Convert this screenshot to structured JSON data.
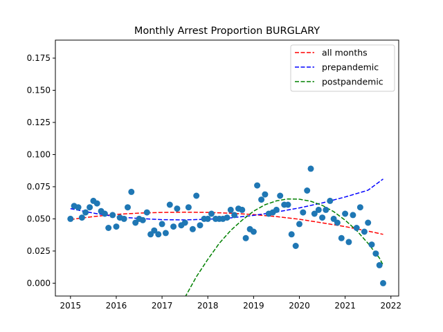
{
  "chart_data": {
    "type": "scatter",
    "title": "Monthly Arrest Proportion BURGLARY",
    "xlabel": "",
    "ylabel": "",
    "xlim": [
      2014.67,
      2022.17
    ],
    "ylim": [
      -0.01,
      0.189
    ],
    "x_ticks": [
      2015,
      2016,
      2017,
      2018,
      2019,
      2020,
      2021,
      2022
    ],
    "y_ticks": [
      0.0,
      0.025,
      0.05,
      0.075,
      0.1,
      0.125,
      0.15,
      0.175
    ],
    "y_tick_labels": [
      "0.000",
      "0.025",
      "0.050",
      "0.075",
      "0.100",
      "0.125",
      "0.150",
      "0.175"
    ],
    "grid": false,
    "legend_position": "top-right",
    "point_color": "#1f77b4",
    "points": [
      [
        2015.0,
        0.05
      ],
      [
        2015.08,
        0.06
      ],
      [
        2015.17,
        0.059
      ],
      [
        2015.25,
        0.051
      ],
      [
        2015.33,
        0.055
      ],
      [
        2015.42,
        0.059
      ],
      [
        2015.5,
        0.064
      ],
      [
        2015.58,
        0.062
      ],
      [
        2015.67,
        0.056
      ],
      [
        2015.75,
        0.054
      ],
      [
        2015.83,
        0.043
      ],
      [
        2015.92,
        0.053
      ],
      [
        2016.0,
        0.044
      ],
      [
        2016.08,
        0.051
      ],
      [
        2016.17,
        0.05
      ],
      [
        2016.25,
        0.059
      ],
      [
        2016.33,
        0.071
      ],
      [
        2016.42,
        0.047
      ],
      [
        2016.5,
        0.05
      ],
      [
        2016.58,
        0.049
      ],
      [
        2016.67,
        0.055
      ],
      [
        2016.75,
        0.038
      ],
      [
        2016.83,
        0.041
      ],
      [
        2016.92,
        0.038
      ],
      [
        2017.0,
        0.046
      ],
      [
        2017.08,
        0.039
      ],
      [
        2017.17,
        0.061
      ],
      [
        2017.25,
        0.044
      ],
      [
        2017.33,
        0.058
      ],
      [
        2017.42,
        0.045
      ],
      [
        2017.5,
        0.047
      ],
      [
        2017.58,
        0.059
      ],
      [
        2017.67,
        0.042
      ],
      [
        2017.75,
        0.068
      ],
      [
        2017.83,
        0.045
      ],
      [
        2017.92,
        0.05
      ],
      [
        2018.0,
        0.05
      ],
      [
        2018.08,
        0.054
      ],
      [
        2018.17,
        0.05
      ],
      [
        2018.25,
        0.05
      ],
      [
        2018.33,
        0.05
      ],
      [
        2018.42,
        0.051
      ],
      [
        2018.5,
        0.057
      ],
      [
        2018.58,
        0.053
      ],
      [
        2018.67,
        0.058
      ],
      [
        2018.75,
        0.057
      ],
      [
        2018.83,
        0.035
      ],
      [
        2018.92,
        0.042
      ],
      [
        2019.0,
        0.04
      ],
      [
        2019.08,
        0.076
      ],
      [
        2019.17,
        0.065
      ],
      [
        2019.25,
        0.069
      ],
      [
        2019.33,
        0.054
      ],
      [
        2019.42,
        0.055
      ],
      [
        2019.5,
        0.057
      ],
      [
        2019.58,
        0.068
      ],
      [
        2019.67,
        0.061
      ],
      [
        2019.75,
        0.061
      ],
      [
        2019.83,
        0.038
      ],
      [
        2019.92,
        0.029
      ],
      [
        2020.0,
        0.046
      ],
      [
        2020.08,
        0.055
      ],
      [
        2020.17,
        0.072
      ],
      [
        2020.25,
        0.089
      ],
      [
        2020.33,
        0.054
      ],
      [
        2020.42,
        0.057
      ],
      [
        2020.5,
        0.051
      ],
      [
        2020.58,
        0.057
      ],
      [
        2020.67,
        0.064
      ],
      [
        2020.75,
        0.05
      ],
      [
        2020.83,
        0.047
      ],
      [
        2020.92,
        0.035
      ],
      [
        2021.0,
        0.054
      ],
      [
        2021.08,
        0.032
      ],
      [
        2021.17,
        0.053
      ],
      [
        2021.25,
        0.043
      ],
      [
        2021.33,
        0.059
      ],
      [
        2021.42,
        0.04
      ],
      [
        2021.5,
        0.047
      ],
      [
        2021.58,
        0.03
      ],
      [
        2021.67,
        0.023
      ],
      [
        2021.75,
        0.014
      ],
      [
        2021.83,
        0.0
      ]
    ],
    "series": [
      {
        "name": "all months",
        "color": "#ff0000",
        "style": "dashed",
        "x": [
          2015.0,
          2015.5,
          2016.0,
          2016.5,
          2017.0,
          2017.5,
          2018.0,
          2018.5,
          2019.0,
          2019.5,
          2020.0,
          2020.5,
          2021.0,
          2021.5,
          2021.83
        ],
        "y": [
          0.0495,
          0.0518,
          0.0535,
          0.0545,
          0.055,
          0.0552,
          0.055,
          0.0544,
          0.0533,
          0.0518,
          0.0497,
          0.0469,
          0.044,
          0.0405,
          0.038
        ]
      },
      {
        "name": "prepandemic",
        "color": "#0000ff",
        "style": "dashed",
        "x": [
          2015.0,
          2015.5,
          2016.0,
          2016.5,
          2017.0,
          2017.5,
          2018.0,
          2018.5,
          2019.0,
          2019.5,
          2020.0,
          2020.5,
          2021.0,
          2021.5,
          2021.83
        ],
        "y": [
          0.058,
          0.0545,
          0.0517,
          0.0503,
          0.0494,
          0.0492,
          0.0497,
          0.0508,
          0.0527,
          0.0553,
          0.0585,
          0.0624,
          0.067,
          0.0723,
          0.081
        ]
      },
      {
        "name": "postpandemic",
        "color": "#008000",
        "style": "dashed",
        "x": [
          2017.5,
          2017.75,
          2018.0,
          2018.25,
          2018.5,
          2018.75,
          2019.0,
          2019.25,
          2019.5,
          2019.75,
          2020.0,
          2020.25,
          2020.5,
          2020.75,
          2021.0,
          2021.25,
          2021.5,
          2021.75,
          2021.83
        ],
        "y": [
          -0.011,
          0.005,
          0.0185,
          0.031,
          0.041,
          0.049,
          0.056,
          0.061,
          0.064,
          0.0655,
          0.0653,
          0.0637,
          0.0605,
          0.0556,
          0.049,
          0.041,
          0.031,
          0.0195,
          0.014
        ]
      }
    ]
  }
}
